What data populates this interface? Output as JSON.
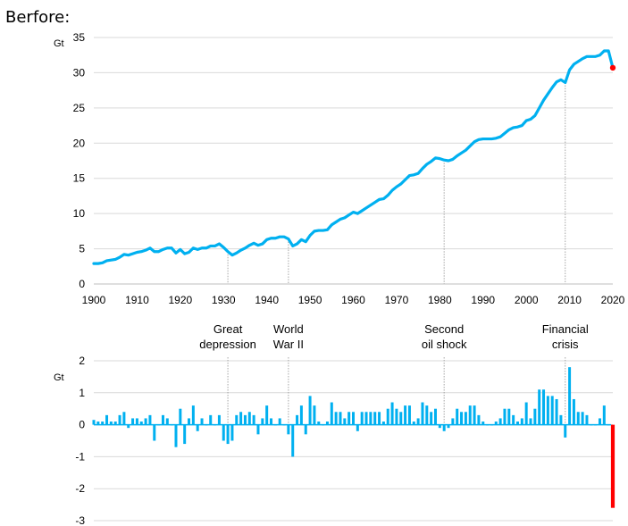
{
  "header": {
    "text": "Berfore:"
  },
  "colors": {
    "line": "#00b0f0",
    "bar": "#00b0f0",
    "highlight": "#ff0000",
    "grid": "#d9d9d9",
    "marker_line": "#a6a6a6"
  },
  "chart_data": [
    {
      "type": "line",
      "title": "",
      "unit": "Gt",
      "xlim": [
        1900,
        2020
      ],
      "ylim": [
        0,
        35
      ],
      "x_ticks": [
        1900,
        1910,
        1920,
        1930,
        1940,
        1950,
        1960,
        1970,
        1980,
        1990,
        2000,
        2010,
        2020
      ],
      "y_ticks": [
        0,
        5,
        10,
        15,
        20,
        25,
        30,
        35
      ],
      "grid": "horizontal",
      "highlight_point": {
        "x": 2020,
        "y": 30.7
      },
      "series": [
        {
          "x": [
            1900,
            1901,
            1902,
            1903,
            1904,
            1905,
            1906,
            1907,
            1908,
            1909,
            1910,
            1911,
            1912,
            1913,
            1914,
            1915,
            1916,
            1917,
            1918,
            1919,
            1920,
            1921,
            1922,
            1923,
            1924,
            1925,
            1926,
            1927,
            1928,
            1929,
            1930,
            1931,
            1932,
            1933,
            1934,
            1935,
            1936,
            1937,
            1938,
            1939,
            1940,
            1941,
            1942,
            1943,
            1944,
            1945,
            1946,
            1947,
            1948,
            1949,
            1950,
            1951,
            1952,
            1953,
            1954,
            1955,
            1956,
            1957,
            1958,
            1959,
            1960,
            1961,
            1962,
            1963,
            1964,
            1965,
            1966,
            1967,
            1968,
            1969,
            1970,
            1971,
            1972,
            1973,
            1974,
            1975,
            1976,
            1977,
            1978,
            1979,
            1980,
            1981,
            1982,
            1983,
            1984,
            1985,
            1986,
            1987,
            1988,
            1989,
            1990,
            1991,
            1992,
            1993,
            1994,
            1995,
            1996,
            1997,
            1998,
            1999,
            2000,
            2001,
            2002,
            2003,
            2004,
            2005,
            2006,
            2007,
            2008,
            2009,
            2010,
            2011,
            2012,
            2013,
            2014,
            2015,
            2016,
            2017,
            2018,
            2019,
            2020
          ],
          "values": [
            2.9,
            2.9,
            3.0,
            3.3,
            3.4,
            3.5,
            3.8,
            4.2,
            4.1,
            4.3,
            4.5,
            4.6,
            4.8,
            5.1,
            4.6,
            4.6,
            4.9,
            5.1,
            5.1,
            4.4,
            4.9,
            4.3,
            4.5,
            5.1,
            4.9,
            5.1,
            5.1,
            5.4,
            5.4,
            5.7,
            5.2,
            4.6,
            4.1,
            4.4,
            4.8,
            5.1,
            5.5,
            5.8,
            5.5,
            5.7,
            6.3,
            6.5,
            6.5,
            6.7,
            6.7,
            6.4,
            5.4,
            5.7,
            6.3,
            6.0,
            6.9,
            7.5,
            7.6,
            7.6,
            7.7,
            8.4,
            8.8,
            9.2,
            9.4,
            9.8,
            10.2,
            10.0,
            10.4,
            10.8,
            11.2,
            11.6,
            12.0,
            12.1,
            12.6,
            13.3,
            13.8,
            14.2,
            14.8,
            15.4,
            15.5,
            15.7,
            16.4,
            17.0,
            17.4,
            17.9,
            17.8,
            17.6,
            17.5,
            17.7,
            18.2,
            18.6,
            19.0,
            19.6,
            20.2,
            20.5,
            20.6,
            20.6,
            20.6,
            20.7,
            20.9,
            21.4,
            21.9,
            22.2,
            22.3,
            22.5,
            23.2,
            23.4,
            23.9,
            25.0,
            26.1,
            27.0,
            27.9,
            28.7,
            29.0,
            28.6,
            30.4,
            31.2,
            31.6,
            32.0,
            32.3,
            32.3,
            32.3,
            32.5,
            33.1,
            33.1,
            30.7
          ]
        }
      ]
    },
    {
      "type": "bar",
      "title": "",
      "unit": "Gt",
      "xlim": [
        1900,
        2020
      ],
      "ylim": [
        -3,
        2
      ],
      "y_ticks": [
        2,
        1,
        0,
        -1,
        -2,
        -3
      ],
      "grid": "horizontal",
      "highlight_bar": {
        "x": 2020,
        "value": -2.6
      },
      "annotations": [
        {
          "year": 1931,
          "lines": [
            "Great",
            "depression"
          ]
        },
        {
          "year": 1945,
          "lines": [
            "World",
            "War II"
          ]
        },
        {
          "year": 1981,
          "lines": [
            "Second",
            "oil shock"
          ]
        },
        {
          "year": 2009,
          "lines": [
            "Financial",
            "crisis"
          ]
        }
      ],
      "series": [
        {
          "x": [
            1900,
            1901,
            1902,
            1903,
            1904,
            1905,
            1906,
            1907,
            1908,
            1909,
            1910,
            1911,
            1912,
            1913,
            1914,
            1915,
            1916,
            1917,
            1918,
            1919,
            1920,
            1921,
            1922,
            1923,
            1924,
            1925,
            1926,
            1927,
            1928,
            1929,
            1930,
            1931,
            1932,
            1933,
            1934,
            1935,
            1936,
            1937,
            1938,
            1939,
            1940,
            1941,
            1942,
            1943,
            1944,
            1945,
            1946,
            1947,
            1948,
            1949,
            1950,
            1951,
            1952,
            1953,
            1954,
            1955,
            1956,
            1957,
            1958,
            1959,
            1960,
            1961,
            1962,
            1963,
            1964,
            1965,
            1966,
            1967,
            1968,
            1969,
            1970,
            1971,
            1972,
            1973,
            1974,
            1975,
            1976,
            1977,
            1978,
            1979,
            1980,
            1981,
            1982,
            1983,
            1984,
            1985,
            1986,
            1987,
            1988,
            1989,
            1990,
            1991,
            1992,
            1993,
            1994,
            1995,
            1996,
            1997,
            1998,
            1999,
            2000,
            2001,
            2002,
            2003,
            2004,
            2005,
            2006,
            2007,
            2008,
            2009,
            2010,
            2011,
            2012,
            2013,
            2014,
            2015,
            2016,
            2017,
            2018,
            2019,
            2020
          ],
          "values": [
            0.15,
            0.1,
            0.1,
            0.3,
            0.1,
            0.1,
            0.3,
            0.4,
            -0.1,
            0.2,
            0.2,
            0.1,
            0.2,
            0.3,
            -0.5,
            0.0,
            0.3,
            0.2,
            0.0,
            -0.7,
            0.5,
            -0.6,
            0.2,
            0.6,
            -0.2,
            0.2,
            0.0,
            0.3,
            0.0,
            0.3,
            -0.5,
            -0.6,
            -0.5,
            0.3,
            0.4,
            0.3,
            0.4,
            0.3,
            -0.3,
            0.2,
            0.6,
            0.2,
            0.0,
            0.2,
            0.0,
            -0.3,
            -1.0,
            0.3,
            0.6,
            -0.3,
            0.9,
            0.6,
            0.1,
            0.0,
            0.1,
            0.7,
            0.4,
            0.4,
            0.2,
            0.4,
            0.4,
            -0.2,
            0.4,
            0.4,
            0.4,
            0.4,
            0.4,
            0.1,
            0.5,
            0.7,
            0.5,
            0.4,
            0.6,
            0.6,
            0.1,
            0.2,
            0.7,
            0.6,
            0.4,
            0.5,
            -0.1,
            -0.2,
            -0.1,
            0.2,
            0.5,
            0.4,
            0.4,
            0.6,
            0.6,
            0.3,
            0.1,
            0.0,
            0.0,
            0.1,
            0.2,
            0.5,
            0.5,
            0.3,
            0.1,
            0.2,
            0.7,
            0.2,
            0.5,
            1.1,
            1.1,
            0.9,
            0.9,
            0.8,
            0.3,
            -0.4,
            1.8,
            0.8,
            0.4,
            0.4,
            0.3,
            0.0,
            0.0,
            0.2,
            0.6,
            0.0,
            -2.6
          ]
        }
      ]
    }
  ]
}
